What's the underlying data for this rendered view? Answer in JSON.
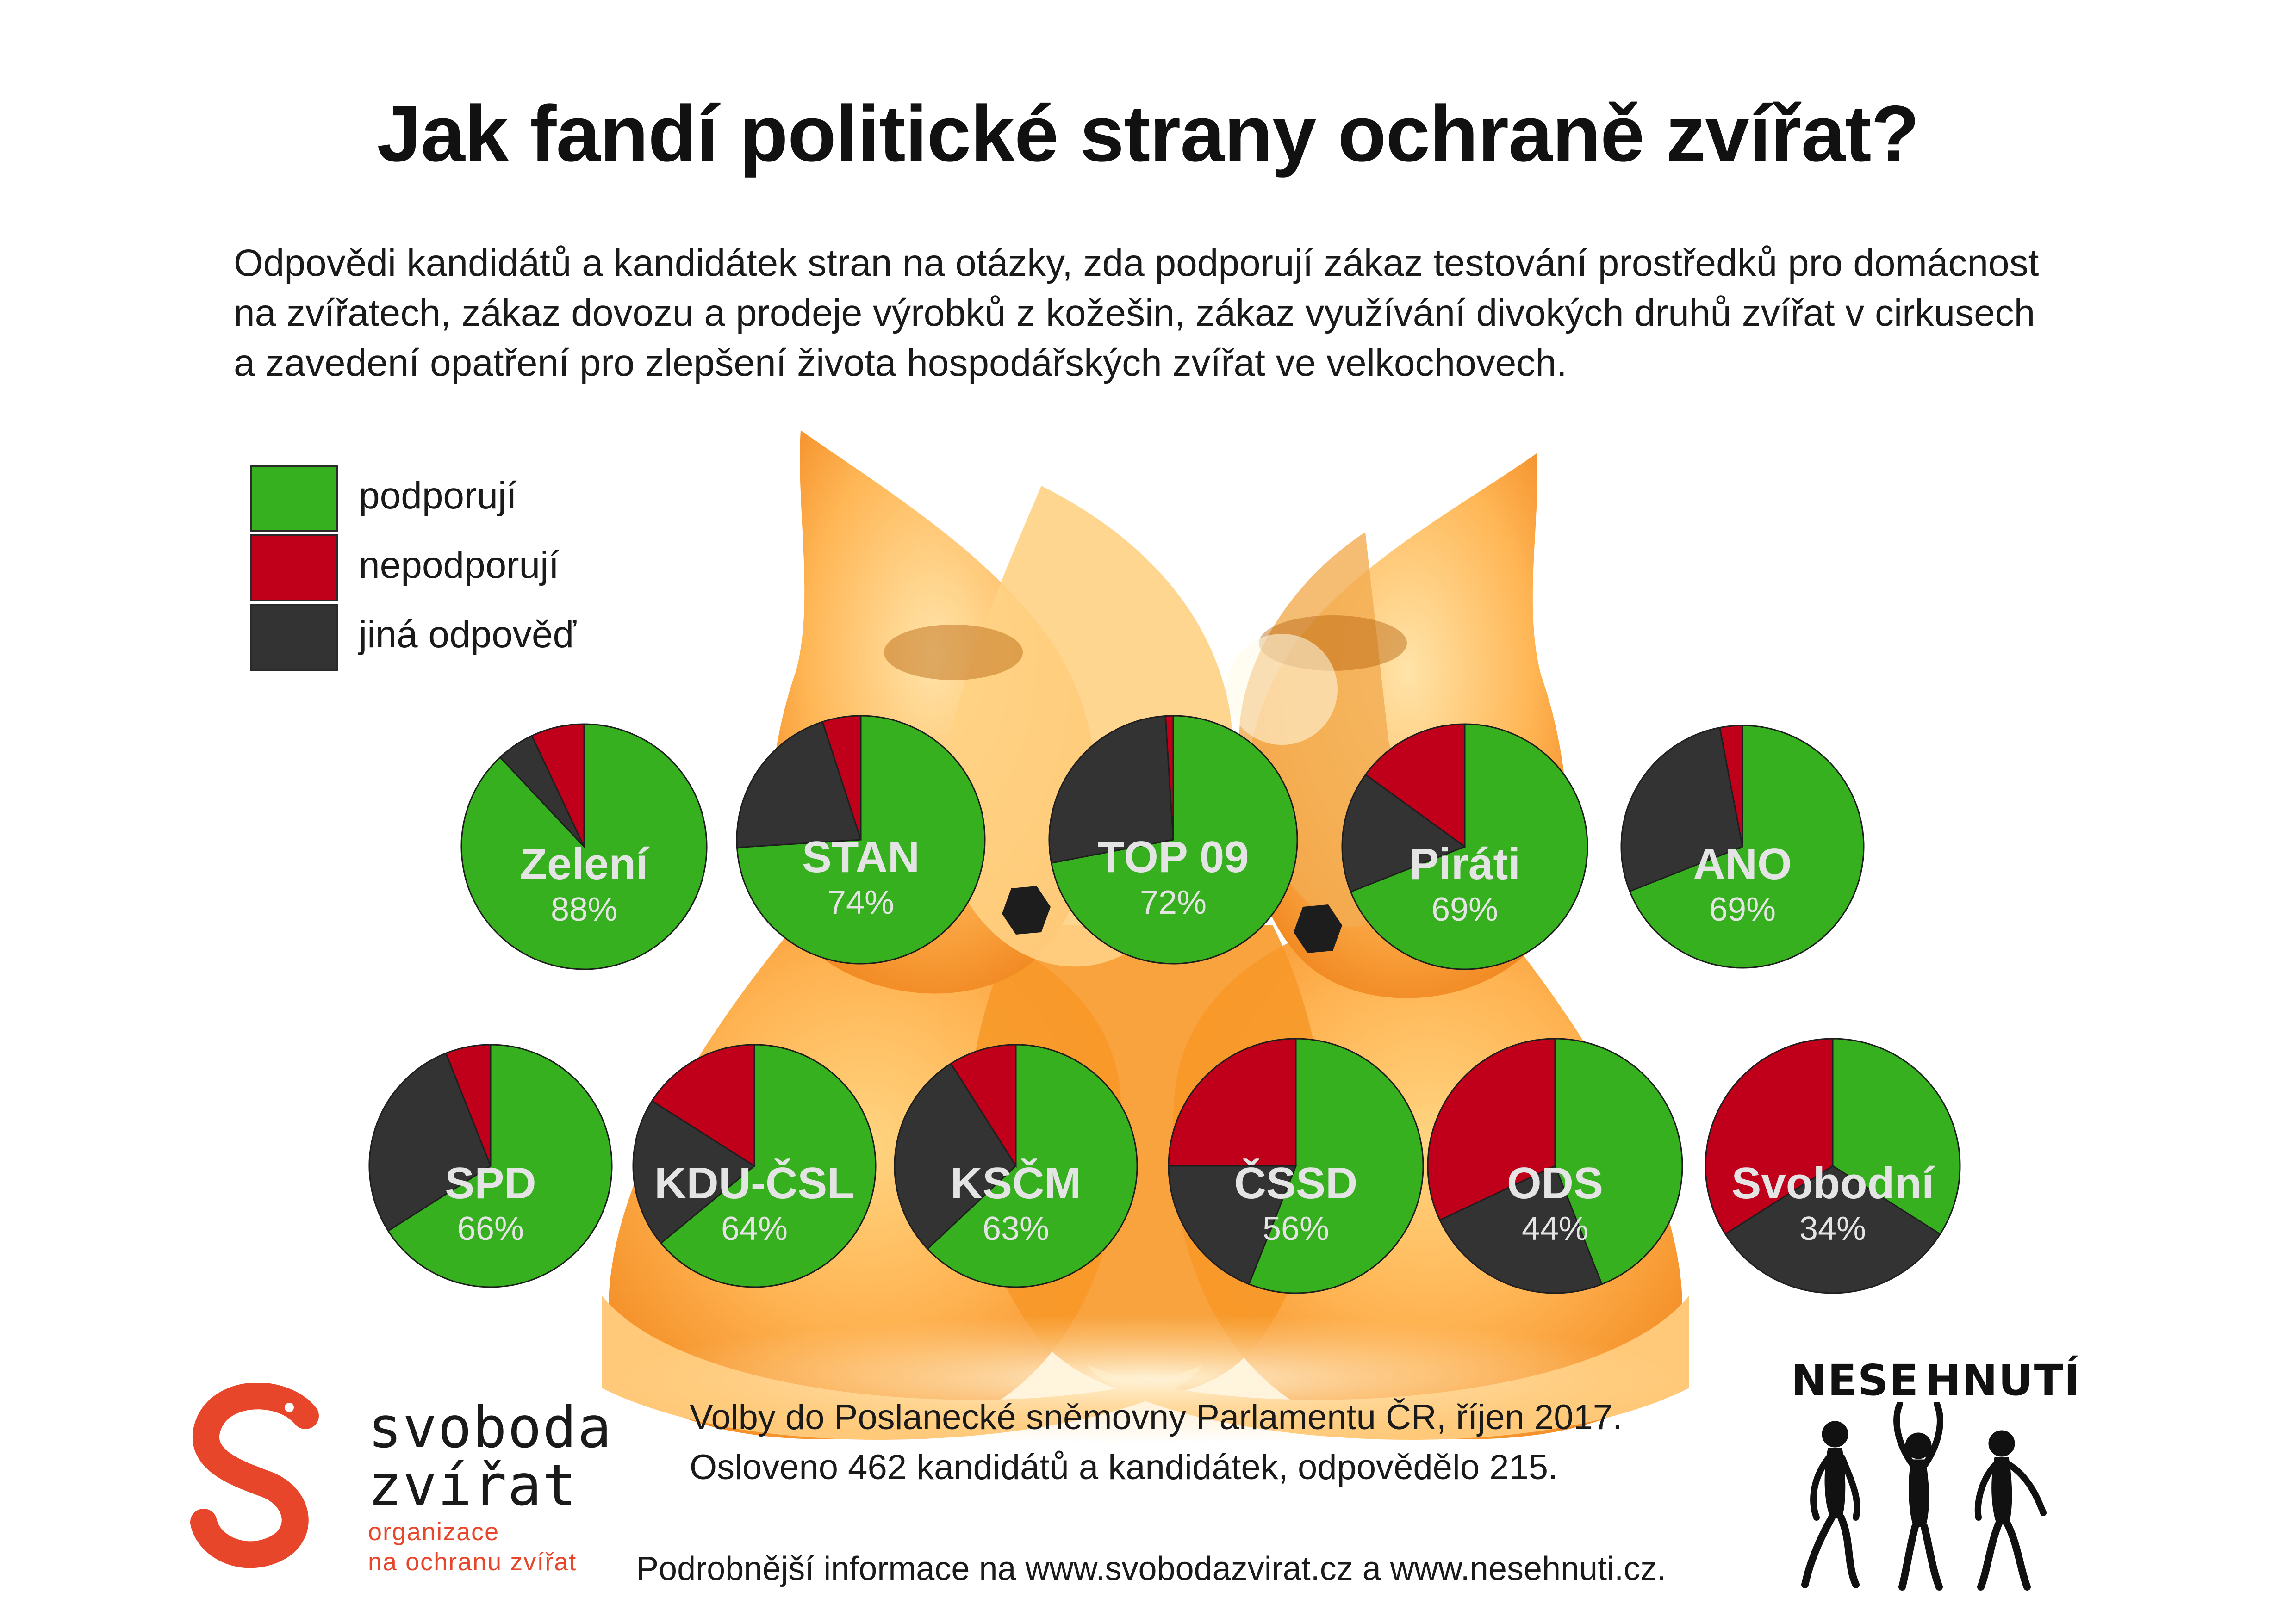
{
  "title": "Jak fandí politické strany ochraně zvířat?",
  "subtitle_lines": [
    "Odpovědi kandidátů a kandidátek stran na otázky, zda podporují zákaz testování prostředků pro domácnost",
    "na zvířatech, zákaz dovozu a prodeje výrobků z kožešin, zákaz využívání divokých druhů zvířat v cirkusech",
    "a zavedení opatření pro zlepšení života hospodářských zvířat ve velkochovech."
  ],
  "colors": {
    "support": "#36b01e",
    "oppose": "#c0001a",
    "other": "#333333",
    "label": "#e4e4e4",
    "brand": "#e8462a"
  },
  "legend": [
    {
      "label": "podporují",
      "color": "#36b01e"
    },
    {
      "label": "nepodporují",
      "color": "#c0001a"
    },
    {
      "label": "jiná odpověď",
      "color": "#333333"
    }
  ],
  "chart_data": {
    "type": "pie",
    "categories": [
      "podporují",
      "nepodporují",
      "jiná odpověď"
    ],
    "pies": [
      {
        "party": "Zelení",
        "pct_label": "88%",
        "values": [
          88,
          7,
          5
        ]
      },
      {
        "party": "STAN",
        "pct_label": "74%",
        "values": [
          74,
          5,
          21
        ]
      },
      {
        "party": "TOP 09",
        "pct_label": "72%",
        "values": [
          72,
          1,
          27
        ]
      },
      {
        "party": "Piráti",
        "pct_label": "69%",
        "values": [
          69,
          15,
          16
        ]
      },
      {
        "party": "ANO",
        "pct_label": "69%",
        "values": [
          69,
          3,
          28
        ]
      },
      {
        "party": "SPD",
        "pct_label": "66%",
        "values": [
          66,
          6,
          28
        ]
      },
      {
        "party": "KDU-ČSL",
        "pct_label": "64%",
        "values": [
          64,
          16,
          20
        ]
      },
      {
        "party": "KSČM",
        "pct_label": "63%",
        "values": [
          63,
          9,
          28
        ]
      },
      {
        "party": "ČSSD",
        "pct_label": "56%",
        "values": [
          56,
          25,
          19
        ]
      },
      {
        "party": "ODS",
        "pct_label": "44%",
        "values": [
          44,
          32,
          24
        ]
      },
      {
        "party": "Svobodní",
        "pct_label": "34%",
        "values": [
          34,
          34,
          32
        ]
      }
    ]
  },
  "footnote_lines": [
    "Volby do Poslanecké sněmovny Parlamentu ČR, říjen 2017.",
    "Osloveno 462 kandidátů a kandidátek, odpovědělo 215."
  ],
  "more_info": "Podrobnější informace na www.svobodazvirat.cz a www.nesehnuti.cz.",
  "logo_left": {
    "name_line1": "svoboda",
    "name_line2": "zvířat",
    "sub_line1": "organizace",
    "sub_line2": "na ochranu zvířat"
  },
  "logo_right": {
    "word1": "NESE",
    "word2": "HNUTÍ"
  }
}
